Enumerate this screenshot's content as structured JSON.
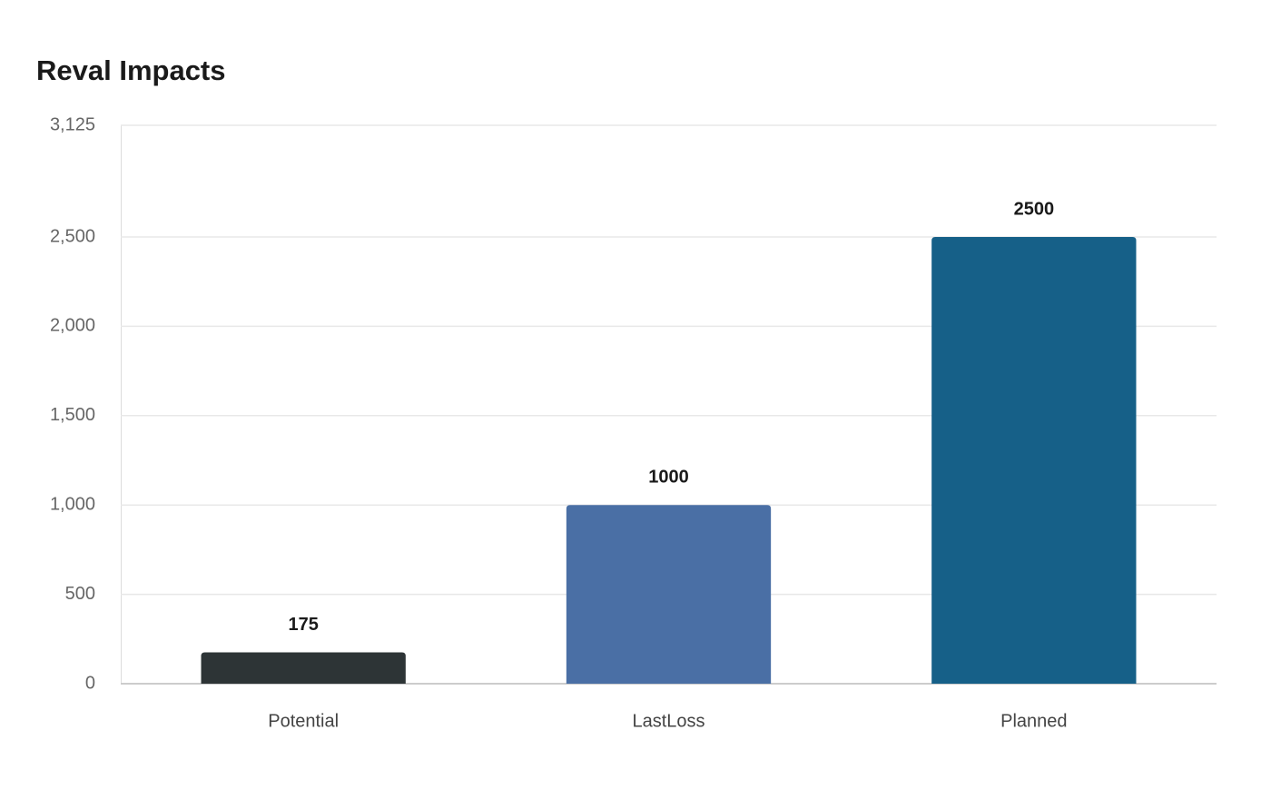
{
  "chart_data": {
    "type": "bar",
    "title": "Reval Impacts",
    "categories": [
      "Potential",
      "LastLoss",
      "Planned"
    ],
    "values": [
      175,
      1000,
      2500
    ],
    "colors": [
      "#2d3436",
      "#4a6fa5",
      "#166088"
    ],
    "ylim": [
      0,
      3125
    ],
    "yticks": [
      0,
      500,
      {
        "value": 1000,
        "label": "1,000"
      },
      {
        "value": 1500,
        "label": "1,500"
      },
      {
        "value": 2000,
        "label": "2,000"
      },
      {
        "value": 2500,
        "label": "2,500"
      },
      {
        "value": 3125,
        "label": "3,125"
      }
    ],
    "grid": true
  }
}
